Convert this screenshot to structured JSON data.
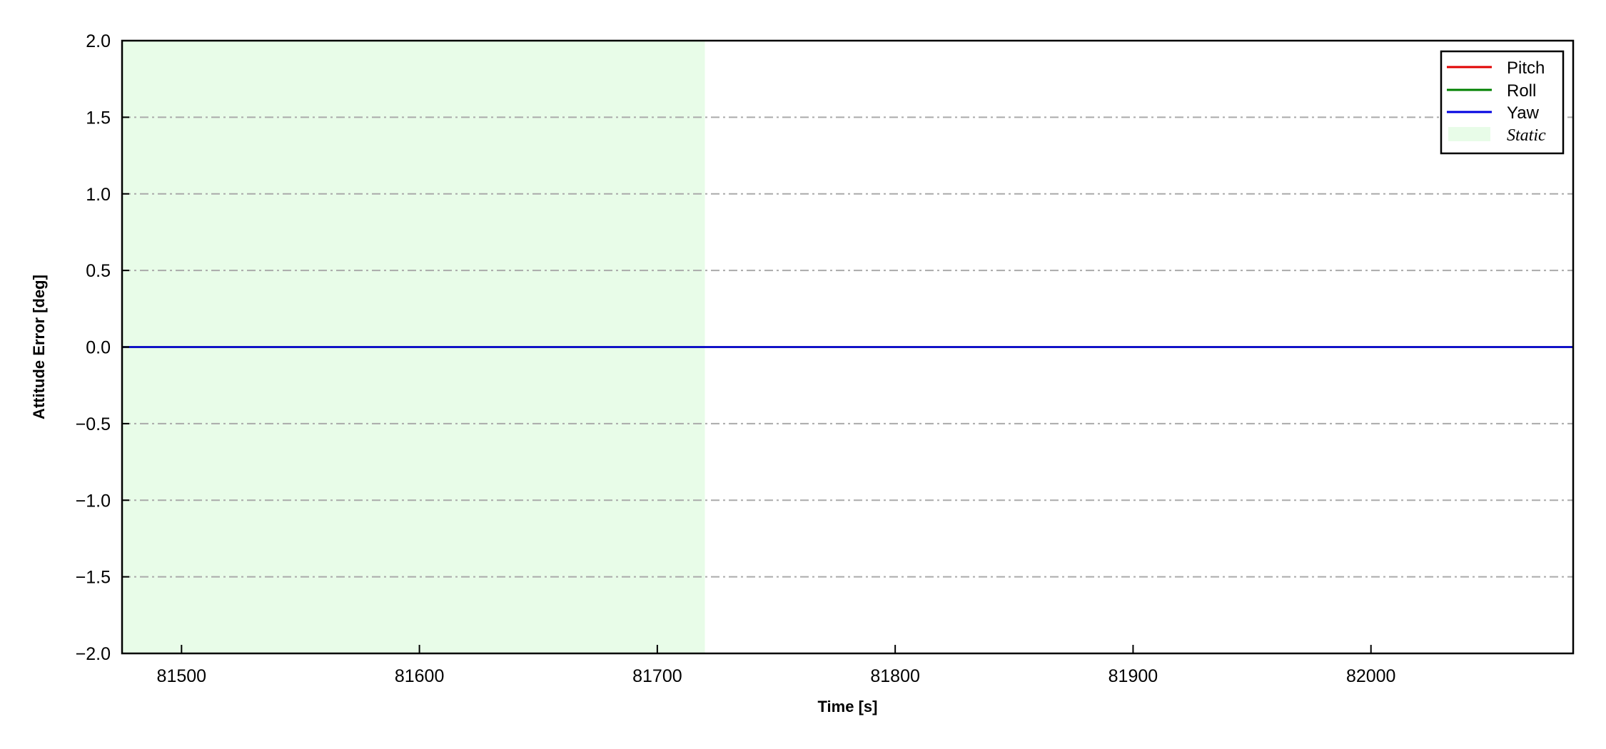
{
  "chart_data": {
    "type": "line",
    "title": "",
    "xlabel": "Time [s]",
    "ylabel": "Attitude Error [deg]",
    "xlim": [
      81475,
      82085
    ],
    "ylim": [
      -2.0,
      2.0
    ],
    "xticks": [
      81500,
      81600,
      81700,
      81800,
      81900,
      82000
    ],
    "xtick_labels": [
      "81500",
      "81600",
      "81700",
      "81800",
      "81900",
      "82000"
    ],
    "yticks": [
      -2.0,
      -1.5,
      -1.0,
      -0.5,
      0.0,
      0.5,
      1.0,
      1.5,
      2.0
    ],
    "ytick_labels": [
      "−2.0",
      "−1.5",
      "−1.0",
      "−0.5",
      "0.0",
      "0.5",
      "1.0",
      "1.5",
      "2.0"
    ],
    "grid": "horizontal dash-dot",
    "legend_position": "top-right",
    "series": [
      {
        "name": "Pitch",
        "color": "#e00000",
        "x": [
          81475,
          82085
        ],
        "y": [
          0,
          0
        ]
      },
      {
        "name": "Roll",
        "color": "#008000",
        "x": [
          81475,
          82085
        ],
        "y": [
          0,
          0
        ]
      },
      {
        "name": "Yaw",
        "color": "#0000e0",
        "x": [
          81475,
          82085
        ],
        "y": [
          0,
          0
        ]
      }
    ],
    "shaded_regions": [
      {
        "name": "Static",
        "x_start": 81475,
        "x_end": 81720,
        "color": "#e8fce8"
      }
    ]
  }
}
